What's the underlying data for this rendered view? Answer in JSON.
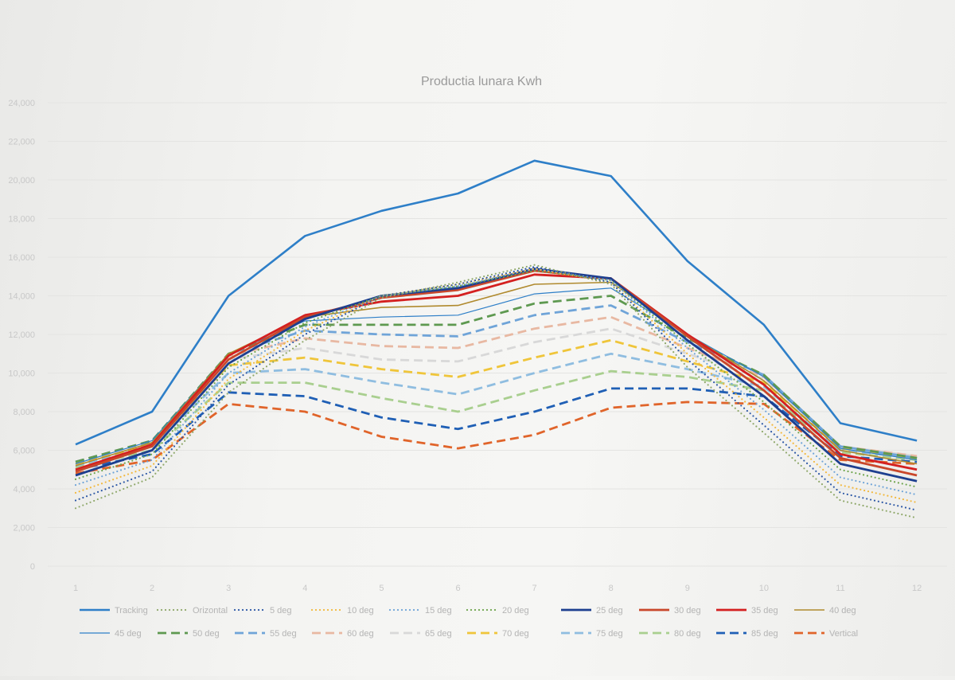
{
  "chart_data": {
    "type": "line",
    "title": "Productia lunara Kwh",
    "xlabel": "",
    "ylabel": "",
    "categories": [
      "1",
      "2",
      "3",
      "4",
      "5",
      "6",
      "7",
      "8",
      "9",
      "10",
      "11",
      "12"
    ],
    "ylim": [
      0,
      24000
    ],
    "yticks": [
      0,
      2000,
      4000,
      6000,
      8000,
      10000,
      12000,
      14000,
      16000,
      18000,
      20000,
      22000,
      24000
    ],
    "ytick_labels": [
      "0",
      "2,000",
      "4,000",
      "6,000",
      "8,000",
      "10,000",
      "12,000",
      "14,000",
      "16,000",
      "18,000",
      "20,000",
      "22,000",
      "24,000"
    ],
    "grid": true,
    "legend_position": "bottom",
    "series": [
      {
        "name": "Tracking",
        "color": "#2e7fc8",
        "style": "solid",
        "width": 2.6,
        "values": [
          6300,
          8000,
          14000,
          17100,
          18400,
          19300,
          21000,
          20200,
          15800,
          12500,
          7400,
          6500
        ]
      },
      {
        "name": "Orizontal",
        "color": "#8fa86a",
        "style": "dotted",
        "width": 2.2,
        "values": [
          3000,
          4600,
          9000,
          11700,
          13900,
          14700,
          15600,
          14600,
          10300,
          6900,
          3400,
          2500
        ]
      },
      {
        "name": "5 deg",
        "color": "#2d58a6",
        "style": "dotted",
        "width": 2.2,
        "values": [
          3400,
          4900,
          9400,
          12000,
          14000,
          14600,
          15500,
          14700,
          10700,
          7300,
          3800,
          2900
        ]
      },
      {
        "name": "10 deg",
        "color": "#f2b83c",
        "style": "dotted",
        "width": 2.2,
        "values": [
          3800,
          5200,
          9700,
          12200,
          14000,
          14600,
          15400,
          14700,
          11000,
          7700,
          4200,
          3300
        ]
      },
      {
        "name": "15 deg",
        "color": "#6fa4d8",
        "style": "dotted",
        "width": 2.2,
        "values": [
          4200,
          5500,
          10000,
          12400,
          14000,
          14500,
          15400,
          14800,
          11300,
          8100,
          4600,
          3700
        ]
      },
      {
        "name": "20 deg",
        "color": "#6ea54c",
        "style": "dotted",
        "width": 2.2,
        "values": [
          4500,
          5800,
          10300,
          12600,
          14000,
          14500,
          15300,
          14800,
          11500,
          8500,
          5000,
          4100
        ]
      },
      {
        "name": "25 deg",
        "color": "#1d3f8f",
        "style": "solid",
        "width": 2.8,
        "values": [
          4700,
          6000,
          10500,
          12800,
          14000,
          14400,
          15400,
          14900,
          11700,
          8800,
          5300,
          4400
        ]
      },
      {
        "name": "30 deg",
        "color": "#c9472b",
        "style": "solid",
        "width": 2.8,
        "values": [
          4900,
          6200,
          10700,
          12900,
          13900,
          14300,
          15300,
          14900,
          11900,
          9100,
          5600,
          4700
        ]
      },
      {
        "name": "35 deg",
        "color": "#d42020",
        "style": "solid",
        "width": 2.8,
        "values": [
          5000,
          6300,
          10900,
          13000,
          13700,
          14000,
          15100,
          14900,
          12000,
          9400,
          5800,
          5000
        ]
      },
      {
        "name": "40 deg",
        "color": "#b08a2e",
        "style": "solid",
        "width": 1.6,
        "values": [
          5200,
          6400,
          11000,
          12900,
          13400,
          13500,
          14600,
          14700,
          12000,
          9600,
          6000,
          5300
        ]
      },
      {
        "name": "45 deg",
        "color": "#2e7fc8",
        "style": "solid",
        "width": 1.2,
        "values": [
          5300,
          6500,
          11000,
          12700,
          12900,
          13000,
          14100,
          14400,
          12000,
          9800,
          6100,
          5500
        ]
      },
      {
        "name": "50 deg",
        "color": "#5e9950",
        "style": "dash",
        "width": 2.8,
        "values": [
          5400,
          6500,
          11000,
          12500,
          12500,
          12500,
          13600,
          14000,
          11800,
          9900,
          6200,
          5600
        ]
      },
      {
        "name": "55 deg",
        "color": "#6fa4d8",
        "style": "dash",
        "width": 2.8,
        "values": [
          5400,
          6500,
          11000,
          12200,
          12000,
          11900,
          13000,
          13500,
          11600,
          9900,
          6200,
          5600
        ]
      },
      {
        "name": "60 deg",
        "color": "#e8b8a2",
        "style": "dash",
        "width": 2.8,
        "values": [
          5400,
          6500,
          10900,
          11800,
          11400,
          11300,
          12300,
          12900,
          11300,
          9800,
          6200,
          5700
        ]
      },
      {
        "name": "65 deg",
        "color": "#d8d8d8",
        "style": "dash",
        "width": 2.8,
        "values": [
          5400,
          6400,
          10700,
          11300,
          10700,
          10600,
          11600,
          12300,
          11000,
          9700,
          6200,
          5700
        ]
      },
      {
        "name": "70 deg",
        "color": "#efc53a",
        "style": "dash",
        "width": 2.8,
        "values": [
          5300,
          6300,
          10400,
          10800,
          10200,
          9800,
          10800,
          11700,
          10600,
          9500,
          6100,
          5600
        ]
      },
      {
        "name": "75 deg",
        "color": "#8fbde0",
        "style": "dash",
        "width": 2.8,
        "values": [
          5200,
          6200,
          10000,
          10200,
          9500,
          8900,
          10000,
          11000,
          10200,
          9300,
          6000,
          5600
        ]
      },
      {
        "name": "80 deg",
        "color": "#a9cf8f",
        "style": "dash",
        "width": 2.8,
        "values": [
          5100,
          6000,
          9500,
          9500,
          8700,
          8000,
          9100,
          10100,
          9800,
          9100,
          5900,
          5500
        ]
      },
      {
        "name": "85 deg",
        "color": "#1f5fb5",
        "style": "dash",
        "width": 2.8,
        "values": [
          5000,
          5800,
          9000,
          8800,
          7700,
          7100,
          8000,
          9200,
          9200,
          8800,
          5700,
          5400
        ]
      },
      {
        "name": "Vertical",
        "color": "#e0642a",
        "style": "dash",
        "width": 2.8,
        "values": [
          4800,
          5500,
          8400,
          8000,
          6700,
          6100,
          6800,
          8200,
          8500,
          8400,
          5500,
          5300
        ]
      }
    ]
  }
}
